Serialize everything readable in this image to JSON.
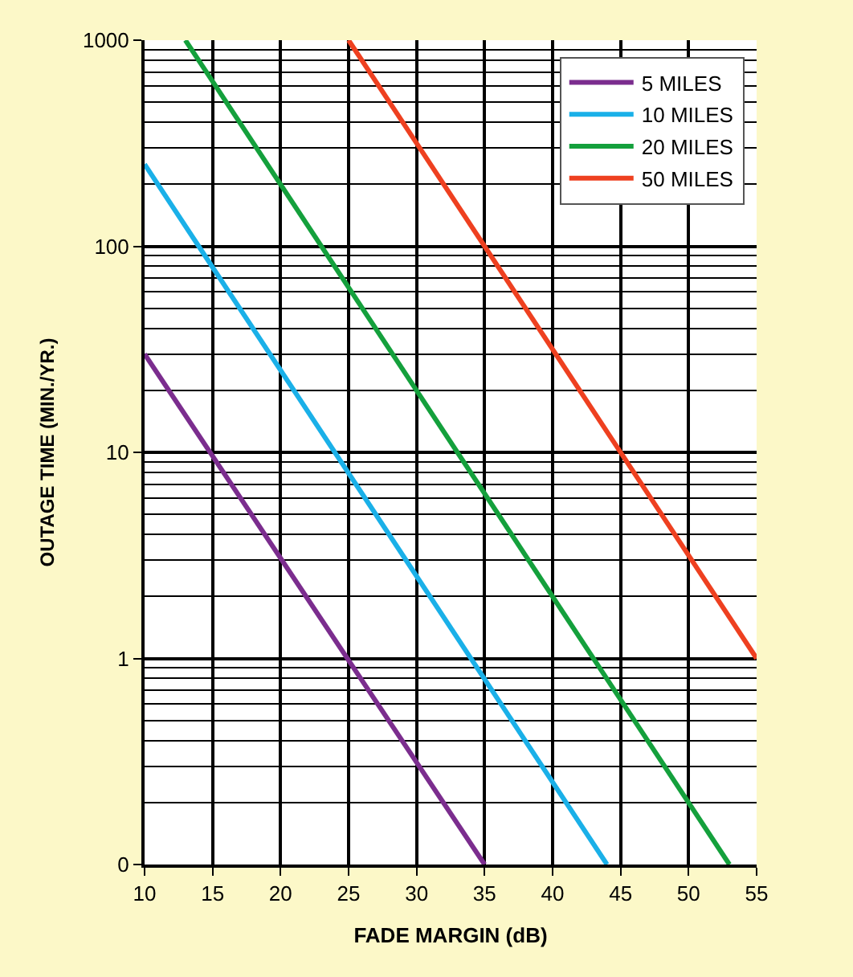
{
  "chart_data": {
    "type": "line",
    "xlabel": "FADE MARGIN (dB)",
    "ylabel": "OUTAGE TIME (MIN./YR.)",
    "series": [
      {
        "name": "5 MILES",
        "color": "#7b2d8e",
        "x": [
          10,
          35
        ],
        "values": [
          30,
          0.1
        ]
      },
      {
        "name": "10 MILES",
        "color": "#1ab0e8",
        "x": [
          10,
          44
        ],
        "values": [
          250,
          0.1
        ]
      },
      {
        "name": "20 MILES",
        "color": "#14a03c",
        "x": [
          13,
          53
        ],
        "values": [
          1000,
          0.1
        ]
      },
      {
        "name": "50 MILES",
        "color": "#ee4020",
        "x": [
          25,
          55
        ],
        "values": [
          1000,
          1
        ]
      }
    ],
    "log": "y",
    "xlim": [
      10,
      55
    ],
    "xticks": [
      10,
      15,
      20,
      25,
      30,
      35,
      40,
      45,
      50,
      55
    ],
    "ylim": [
      0.1,
      1000
    ],
    "yticks": [
      {
        "value": 0.1,
        "label": "0"
      },
      1,
      10,
      100,
      1000
    ],
    "grid": true,
    "legend": "top right",
    "marker": "none",
    "line_style": "solid"
  }
}
